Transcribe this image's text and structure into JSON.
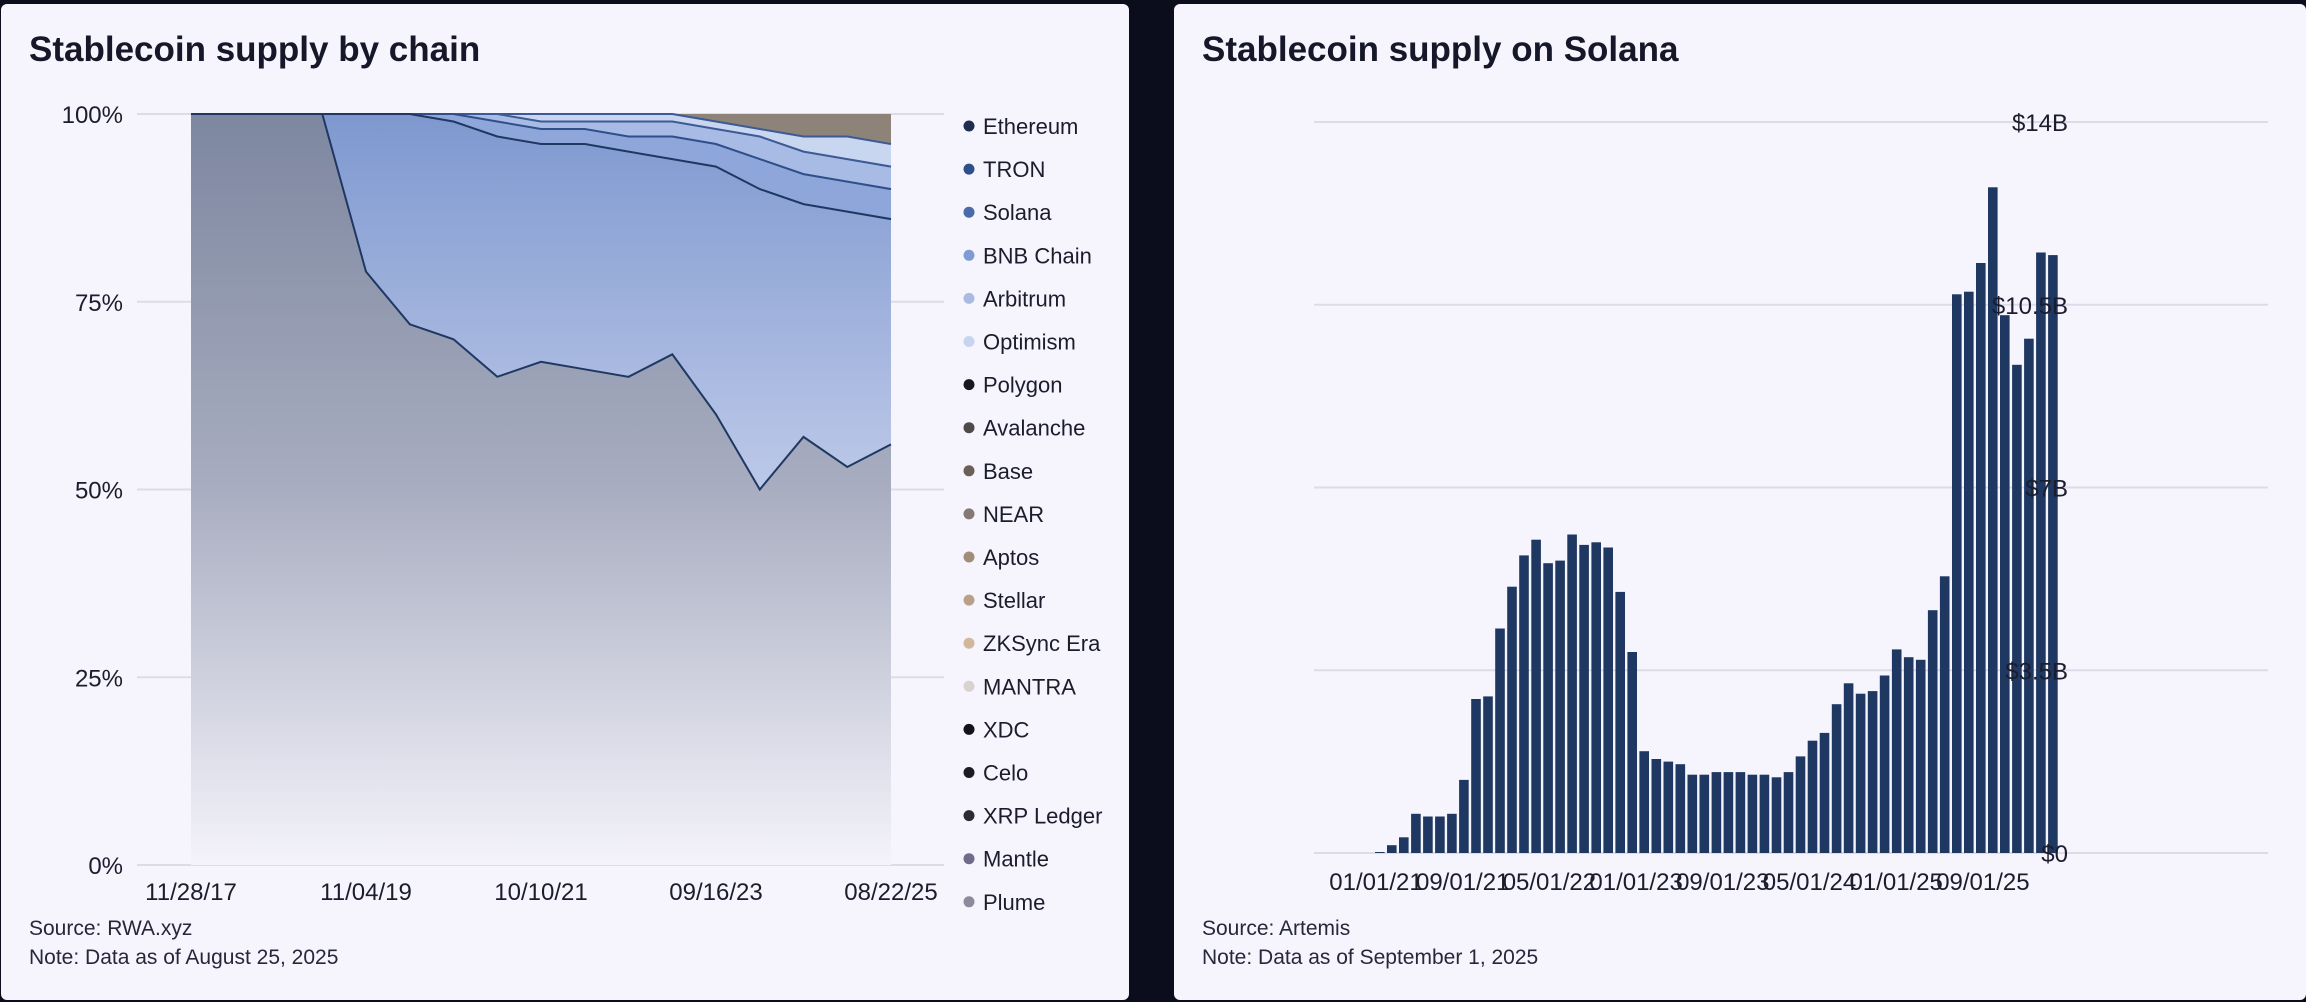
{
  "left_panel": {
    "title": "Stablecoin supply by chain",
    "source": "Source: RWA.xyz",
    "note": "Note: Data as of August 25, 2025"
  },
  "right_panel": {
    "title": "Stablecoin supply on Solana",
    "source": "Source: Artemis",
    "note": "Note: Data as of September 1, 2025"
  },
  "colors": {
    "panel_bg": "#f6f4fd",
    "page_bg": "#0b0c1c",
    "navy": "#1e3862",
    "grid": "#dddbe8"
  },
  "chart_data": [
    {
      "type": "area",
      "stacked": true,
      "normalized": true,
      "x_ticks": [
        "11/28/17",
        "11/04/19",
        "10/10/21",
        "09/16/23",
        "08/22/25"
      ],
      "x": [
        "11/28/17",
        "06/01/18",
        "12/01/18",
        "06/01/19",
        "11/04/19",
        "06/01/20",
        "12/01/20",
        "06/01/21",
        "10/10/21",
        "06/01/22",
        "12/01/22",
        "06/01/23",
        "09/16/23",
        "06/01/24",
        "12/01/24",
        "06/01/25",
        "08/22/25"
      ],
      "y_ticks": [
        "0%",
        "25%",
        "50%",
        "75%",
        "100%"
      ],
      "ylim": [
        0,
        100
      ],
      "legend": [
        {
          "name": "Ethereum",
          "color": "#1d2d4e"
        },
        {
          "name": "TRON",
          "color": "#2f4f8a"
        },
        {
          "name": "Solana",
          "color": "#4a6aa8"
        },
        {
          "name": "BNB Chain",
          "color": "#7f9bd2"
        },
        {
          "name": "Arbitrum",
          "color": "#a9bbe3"
        },
        {
          "name": "Optimism",
          "color": "#c6d4ef"
        },
        {
          "name": "Polygon",
          "color": "#17171f"
        },
        {
          "name": "Avalanche",
          "color": "#4e4a4a"
        },
        {
          "name": "Base",
          "color": "#6b5f58"
        },
        {
          "name": "NEAR",
          "color": "#857a73"
        },
        {
          "name": "Aptos",
          "color": "#a08e78"
        },
        {
          "name": "Stellar",
          "color": "#b9a088"
        },
        {
          "name": "ZKSync Era",
          "color": "#d2b89b"
        },
        {
          "name": "MANTRA",
          "color": "#d9d2cf"
        },
        {
          "name": "XDC",
          "color": "#121218"
        },
        {
          "name": "Celo",
          "color": "#1b1b24"
        },
        {
          "name": "XRP Ledger",
          "color": "#2b2b36"
        },
        {
          "name": "Mantle",
          "color": "#726a8a"
        },
        {
          "name": "Plume",
          "color": "#8d8a9c"
        }
      ],
      "ethereum_share": [
        100,
        100,
        100,
        100,
        79,
        72,
        70,
        65,
        67,
        66,
        65,
        68,
        60,
        50,
        57,
        53,
        56
      ],
      "tron_cum": [
        100,
        100,
        100,
        100,
        100,
        100,
        99,
        97,
        96,
        96,
        95,
        94,
        93,
        90,
        88,
        87,
        86
      ],
      "solana_cum": [
        100,
        100,
        100,
        100,
        100,
        100,
        100,
        99,
        98,
        98,
        97,
        97,
        96,
        94,
        92,
        91,
        90
      ],
      "bnb_cum": [
        100,
        100,
        100,
        100,
        100,
        100,
        100,
        100,
        99,
        99,
        99,
        99,
        98,
        97,
        95,
        94,
        93
      ],
      "arbitrum_cum": [
        100,
        100,
        100,
        100,
        100,
        100,
        100,
        100,
        100,
        100,
        100,
        100,
        99,
        98,
        97,
        97,
        96
      ]
    },
    {
      "type": "bar",
      "x_ticks": [
        "01/01/21",
        "09/01/21",
        "05/01/22",
        "01/01/23",
        "09/01/23",
        "05/01/24",
        "01/01/25",
        "09/01/25"
      ],
      "y_ticks": [
        "$0",
        "$3.5B",
        "$7B",
        "$10.5B",
        "$14B"
      ],
      "ylim": [
        0,
        14
      ],
      "unit": "$B",
      "series": [
        {
          "values": [
            0.02,
            0.15,
            0.3,
            0.75,
            0.7,
            0.7,
            0.75,
            1.4,
            2.95,
            3.0,
            4.3,
            5.1,
            5.7,
            6.0,
            5.55,
            5.6,
            6.1,
            5.9,
            5.95,
            5.85,
            5.0,
            3.85,
            1.95,
            1.8,
            1.75,
            1.7,
            1.5,
            1.5,
            1.55,
            1.55,
            1.55,
            1.5,
            1.5,
            1.45,
            1.55,
            1.85,
            2.15,
            2.3,
            2.85,
            3.25,
            3.05,
            3.1,
            3.4,
            3.9,
            3.75,
            3.7,
            4.65,
            5.3,
            10.7,
            10.75,
            11.3,
            12.75,
            10.3,
            9.35,
            9.85,
            11.5,
            11.45
          ]
        }
      ]
    }
  ]
}
